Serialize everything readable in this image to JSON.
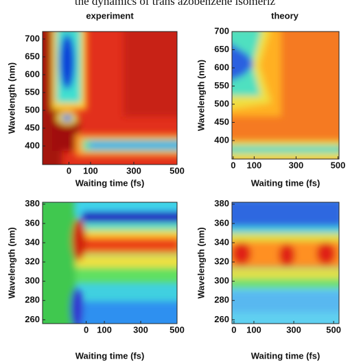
{
  "caption_fragment": "the dynamics of trans azobenzene isomeriz",
  "chart_data": [
    {
      "type": "heatmap",
      "title": "experiment",
      "xlabel": "Waiting time (fs)",
      "ylabel": "Wavelength (nm)",
      "xlim": [
        -122,
        500
      ],
      "ylim": [
        348,
        721
      ],
      "xticks": [
        0,
        100,
        300,
        500
      ],
      "yticks": [
        400,
        450,
        500,
        550,
        600,
        650,
        700
      ]
    },
    {
      "type": "heatmap",
      "title": "theory",
      "xlabel": "Waiting time (fs)",
      "ylabel": "Wavelength (nm)",
      "xlim": [
        -6,
        505
      ],
      "ylim": [
        349,
        700
      ],
      "xticks": [
        0,
        100,
        300,
        500
      ],
      "yticks": [
        400,
        450,
        500,
        550,
        600,
        650,
        700
      ]
    },
    {
      "type": "heatmap",
      "xlabel": "Waiting time (fs)",
      "ylabel": "Wavelength (nm)",
      "xlim": [
        -240,
        500
      ],
      "ylim": [
        256,
        382
      ],
      "xticks": [
        0,
        100,
        300,
        500
      ],
      "yticks": [
        260,
        280,
        300,
        320,
        340,
        360,
        380
      ]
    },
    {
      "type": "heatmap",
      "xlabel": "Waiting time (fs)",
      "ylabel": "Wavelength (nm)",
      "xlim": [
        -10,
        527
      ],
      "ylim": [
        256,
        382
      ],
      "xticks": [
        0,
        100,
        300,
        500
      ],
      "yticks": [
        260,
        280,
        300,
        320,
        340,
        360,
        380
      ]
    }
  ]
}
